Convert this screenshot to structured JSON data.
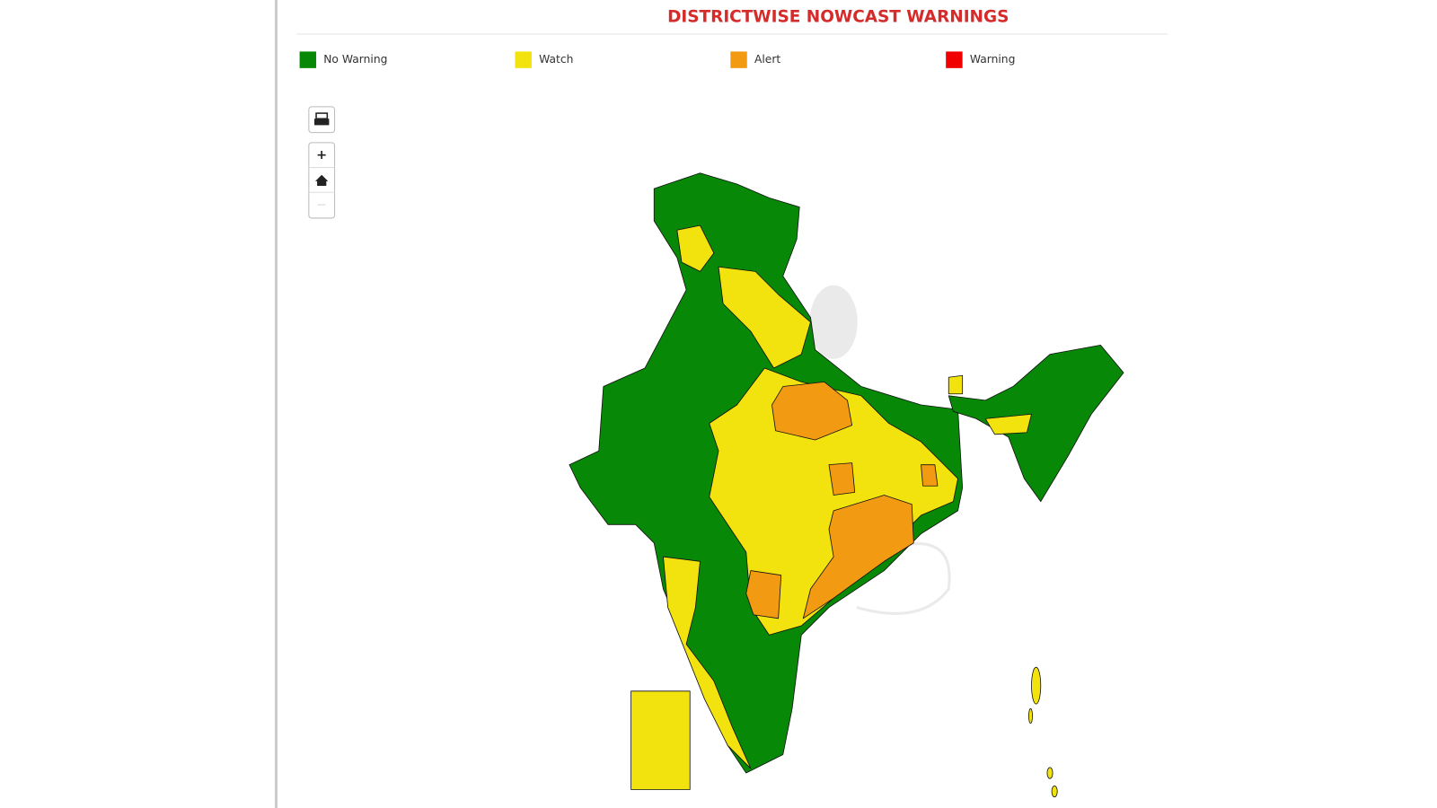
{
  "title": "DISTRICTWISE NOWCAST WARNINGS",
  "legend": [
    {
      "label": "No Warning",
      "color": "#078807"
    },
    {
      "label": "Watch",
      "color": "#f2e30f"
    },
    {
      "label": "Alert",
      "color": "#f39a13"
    },
    {
      "label": "Warning",
      "color": "#f00000"
    }
  ],
  "controls": {
    "zoom_in": "+",
    "zoom_out": "−"
  }
}
